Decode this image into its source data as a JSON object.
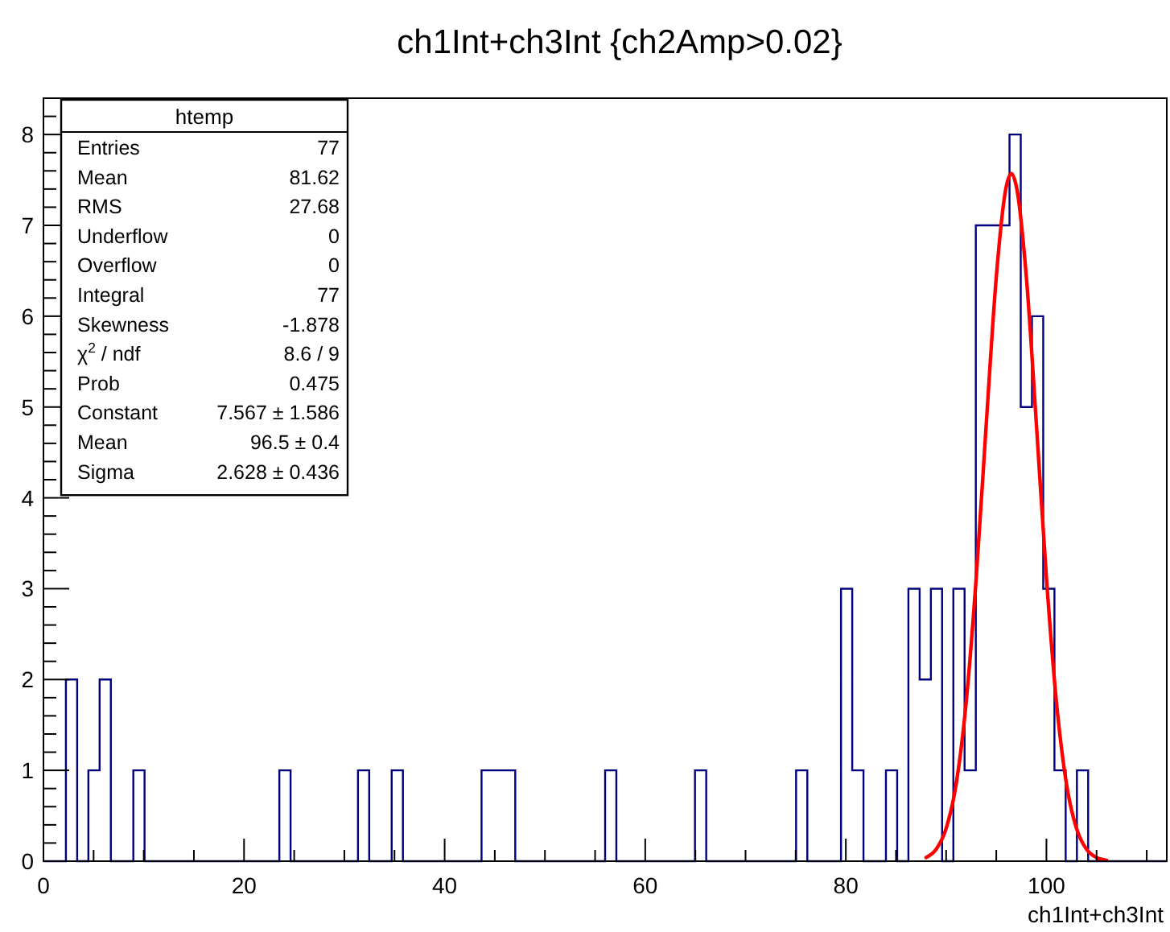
{
  "chart_data": {
    "type": "histogram",
    "title": "ch1Int+ch3Int {ch2Amp>0.02}",
    "xlabel": "ch1Int+ch3Int",
    "color": "#000080",
    "bins": [
      0,
      1.12,
      2.24,
      3.36,
      4.48,
      5.6,
      6.72,
      7.84,
      8.96,
      10.08,
      11.2,
      12.32,
      13.44,
      14.56,
      15.68,
      16.8,
      17.92,
      19.04,
      20.16,
      21.28,
      22.4,
      23.52,
      24.64,
      25.76,
      26.88,
      28,
      29.12,
      30.24,
      31.36,
      32.48,
      33.6,
      34.72,
      35.84,
      36.96,
      38.08,
      39.2,
      40.32,
      41.44,
      42.56,
      43.68,
      44.8,
      45.92,
      47.04,
      48.16,
      49.28,
      50.4,
      51.52,
      52.64,
      53.76,
      54.88,
      56,
      57.12,
      58.24,
      59.36,
      60.48,
      61.6,
      62.72,
      63.84,
      64.96,
      66.08,
      67.2,
      68.32,
      69.44,
      70.56,
      71.68,
      72.8,
      73.92,
      75.04,
      76.16,
      77.28,
      78.4,
      79.52,
      80.64,
      81.76,
      82.88,
      84,
      85.12,
      86.24,
      87.36,
      88.48,
      89.6,
      90.72,
      91.84,
      92.96,
      94.08,
      95.2,
      96.32,
      97.44,
      98.56,
      99.68,
      100.8,
      101.92,
      103.04,
      104.16,
      105.28,
      106.4,
      107.52,
      108.64,
      109.76,
      110.88,
      112
    ],
    "values": [
      0,
      0,
      2,
      0,
      1,
      2,
      0,
      0,
      1,
      0,
      0,
      0,
      0,
      0,
      0,
      0,
      0,
      0,
      0,
      0,
      0,
      1,
      0,
      0,
      0,
      0,
      0,
      0,
      1,
      0,
      0,
      1,
      0,
      0,
      0,
      0,
      0,
      0,
      0,
      1,
      1,
      1,
      0,
      0,
      0,
      0,
      0,
      0,
      0,
      0,
      1,
      0,
      0,
      0,
      0,
      0,
      0,
      0,
      1,
      0,
      0,
      0,
      0,
      0,
      0,
      0,
      0,
      1,
      0,
      0,
      0,
      3,
      1,
      0,
      0,
      1,
      0,
      3,
      2,
      3,
      0,
      3,
      1,
      7,
      7,
      7,
      8,
      5,
      6,
      3,
      1,
      0,
      1,
      0,
      0,
      0,
      0,
      0,
      0,
      0
    ],
    "series": [
      {
        "type": "line",
        "color": "#ff0000",
        "x": [
          88,
          89,
          90,
          91,
          92,
          93,
          94,
          95,
          96,
          96.5,
          97,
          98,
          99,
          100,
          101,
          102,
          103,
          104,
          105,
          106
        ],
        "values": [
          0.04,
          0.13,
          0.36,
          0.85,
          1.75,
          3.12,
          4.81,
          6.43,
          7.43,
          7.57,
          7.43,
          6.43,
          4.81,
          3.12,
          1.75,
          0.85,
          0.36,
          0.13,
          0.04,
          0.01
        ]
      }
    ],
    "xlim": [
      0,
      112
    ],
    "ylim": [
      0,
      8.4
    ],
    "xticks": [
      0,
      {
        "value": 5,
        "label": null
      },
      {
        "value": 10,
        "label": null
      },
      {
        "value": 15,
        "label": null
      },
      20,
      {
        "value": 25,
        "label": null
      },
      {
        "value": 30,
        "label": null
      },
      {
        "value": 35,
        "label": null
      },
      40,
      {
        "value": 45,
        "label": null
      },
      {
        "value": 50,
        "label": null
      },
      {
        "value": 55,
        "label": null
      },
      60,
      {
        "value": 65,
        "label": null
      },
      {
        "value": 70,
        "label": null
      },
      {
        "value": 75,
        "label": null
      },
      80,
      {
        "value": 85,
        "label": null
      },
      {
        "value": 90,
        "label": null
      },
      {
        "value": 95,
        "label": null
      },
      100,
      {
        "value": 105,
        "label": null
      },
      {
        "value": 110,
        "label": null
      }
    ],
    "yticks": [
      0,
      {
        "value": 0.2,
        "label": null
      },
      {
        "value": 0.4,
        "label": null
      },
      {
        "value": 0.6,
        "label": null
      },
      {
        "value": 0.8,
        "label": null
      },
      1,
      {
        "value": 1.2,
        "label": null
      },
      {
        "value": 1.4,
        "label": null
      },
      {
        "value": 1.6,
        "label": null
      },
      {
        "value": 1.8,
        "label": null
      },
      2,
      {
        "value": 2.2,
        "label": null
      },
      {
        "value": 2.4,
        "label": null
      },
      {
        "value": 2.6,
        "label": null
      },
      {
        "value": 2.8,
        "label": null
      },
      3,
      {
        "value": 3.2,
        "label": null
      },
      {
        "value": 3.4,
        "label": null
      },
      {
        "value": 3.6,
        "label": null
      },
      {
        "value": 3.8,
        "label": null
      },
      4,
      {
        "value": 4.2,
        "label": null
      },
      {
        "value": 4.4,
        "label": null
      },
      {
        "value": 4.6,
        "label": null
      },
      {
        "value": 4.8,
        "label": null
      },
      5,
      {
        "value": 5.2,
        "label": null
      },
      {
        "value": 5.4,
        "label": null
      },
      {
        "value": 5.6,
        "label": null
      },
      {
        "value": 5.8,
        "label": null
      },
      6,
      {
        "value": 6.2,
        "label": null
      },
      {
        "value": 6.4,
        "label": null
      },
      {
        "value": 6.6,
        "label": null
      },
      {
        "value": 6.8,
        "label": null
      },
      7,
      {
        "value": 7.2,
        "label": null
      },
      {
        "value": 7.4,
        "label": null
      },
      {
        "value": 7.6,
        "label": null
      },
      {
        "value": 7.8,
        "label": null
      },
      8,
      {
        "value": 8.2,
        "label": null
      }
    ],
    "annotations": [
      "htemp",
      "Entries\t77",
      "Mean\t81.62",
      "RMS\t27.68",
      "Underflow\t0",
      "Overflow\t0",
      "Integral\t77",
      "Skewness\t-1.878",
      "χ$^{2}$ / ndf\t8.6 / 9",
      "Prob\t0.475",
      "Constant\t7.567 ± 1.586",
      "Mean\t96.5 ± 0.4",
      "Sigma\t2.628 ± 0.436"
    ]
  }
}
